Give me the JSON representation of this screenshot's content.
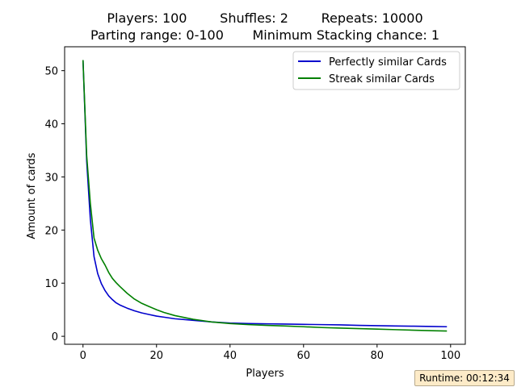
{
  "chart_data": {
    "type": "line",
    "title_line1": "Players: 100        Shuffles: 2        Repeats: 10000",
    "title_line2": "Parting range: 0-100       Minimum Stacking chance: 1",
    "xlabel": "Players",
    "ylabel": "Amount of cards",
    "xlim": [
      -5,
      104
    ],
    "ylim": [
      -1.5,
      54.5
    ],
    "xticks": [
      0,
      20,
      40,
      60,
      80,
      100
    ],
    "yticks": [
      0,
      10,
      20,
      30,
      40,
      50
    ],
    "legend_position": "upper-right",
    "grid": false,
    "series": [
      {
        "name": "Perfectly similar Cards",
        "color": "#0000cc",
        "x": [
          0,
          1,
          2,
          3,
          4,
          5,
          6,
          7,
          8,
          9,
          10,
          12,
          14,
          16,
          18,
          20,
          22,
          25,
          30,
          35,
          40,
          45,
          50,
          55,
          60,
          65,
          70,
          75,
          80,
          85,
          90,
          95,
          99
        ],
        "y": [
          52,
          33,
          22,
          15,
          11.8,
          9.9,
          8.6,
          7.6,
          6.9,
          6.3,
          5.9,
          5.3,
          4.8,
          4.4,
          4.1,
          3.8,
          3.6,
          3.3,
          3.0,
          2.7,
          2.5,
          2.4,
          2.35,
          2.3,
          2.25,
          2.2,
          2.15,
          2.05,
          2.0,
          1.95,
          1.9,
          1.85,
          1.8
        ]
      },
      {
        "name": "Streak similar Cards",
        "color": "#008000",
        "x": [
          0,
          1,
          2,
          3,
          4,
          5,
          6,
          7,
          8,
          9,
          10,
          12,
          14,
          16,
          18,
          20,
          22,
          25,
          30,
          35,
          40,
          45,
          50,
          55,
          60,
          65,
          70,
          75,
          80,
          85,
          90,
          95,
          99
        ],
        "y": [
          52,
          34,
          25,
          18.5,
          16.2,
          14.6,
          13.4,
          12.0,
          10.9,
          10.1,
          9.4,
          8.1,
          7.0,
          6.2,
          5.6,
          5.0,
          4.5,
          3.9,
          3.2,
          2.7,
          2.4,
          2.2,
          2.05,
          1.95,
          1.8,
          1.65,
          1.55,
          1.45,
          1.35,
          1.25,
          1.15,
          1.05,
          1.0
        ]
      }
    ]
  },
  "runtime": "Runtime: 00:12:34"
}
